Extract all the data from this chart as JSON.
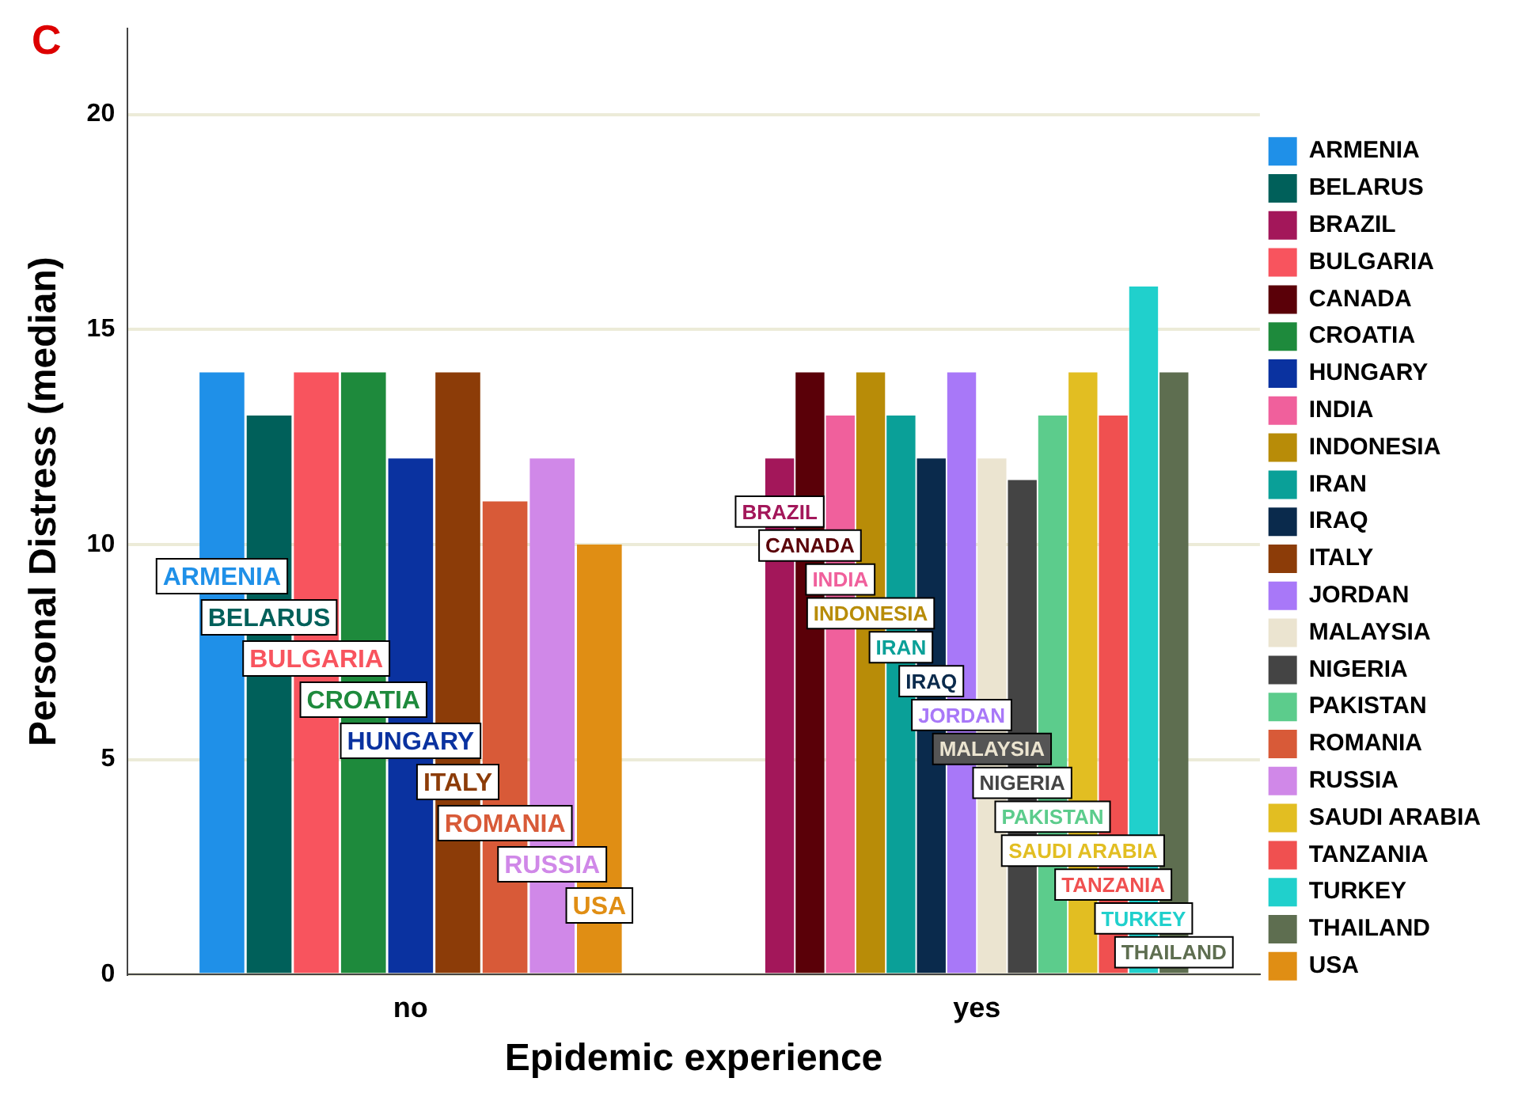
{
  "chart_data": {
    "type": "bar",
    "title": "C",
    "xlabel": "Epidemic experience",
    "ylabel": "Personal Distress (median)",
    "categories": [
      "no",
      "yes"
    ],
    "series": [
      {
        "name": "ARMENIA",
        "color": "#1f90e8",
        "values": [
          14,
          null
        ]
      },
      {
        "name": "BELARUS",
        "color": "#00605a",
        "values": [
          13,
          null
        ]
      },
      {
        "name": "BRAZIL",
        "color": "#a3175a",
        "values": [
          null,
          12
        ]
      },
      {
        "name": "BULGARIA",
        "color": "#f8545e",
        "values": [
          14,
          null
        ]
      },
      {
        "name": "CANADA",
        "color": "#5a0008",
        "values": [
          null,
          14
        ]
      },
      {
        "name": "CROATIA",
        "color": "#1e8a3c",
        "values": [
          14,
          null
        ]
      },
      {
        "name": "HUNGARY",
        "color": "#0a32a0",
        "values": [
          12,
          null
        ]
      },
      {
        "name": "INDIA",
        "color": "#f0609c",
        "values": [
          null,
          13
        ]
      },
      {
        "name": "INDONESIA",
        "color": "#b88c08",
        "values": [
          null,
          14
        ]
      },
      {
        "name": "IRAN",
        "color": "#0aa098",
        "values": [
          null,
          13
        ]
      },
      {
        "name": "IRAQ",
        "color": "#0a2a4c",
        "values": [
          null,
          12
        ]
      },
      {
        "name": "ITALY",
        "color": "#8c3c08",
        "values": [
          14,
          null
        ]
      },
      {
        "name": "JORDAN",
        "color": "#a878f8",
        "values": [
          null,
          14
        ]
      },
      {
        "name": "MALAYSIA",
        "color": "#ebe4d0",
        "values": [
          null,
          12
        ]
      },
      {
        "name": "NIGERIA",
        "color": "#444444",
        "values": [
          null,
          11.5
        ]
      },
      {
        "name": "PAKISTAN",
        "color": "#5ccc8c",
        "values": [
          null,
          13
        ]
      },
      {
        "name": "ROMANIA",
        "color": "#d85a38",
        "values": [
          11,
          null
        ]
      },
      {
        "name": "RUSSIA",
        "color": "#d088e8",
        "values": [
          12,
          null
        ]
      },
      {
        "name": "SAUDI ARABIA",
        "color": "#e2be22",
        "values": [
          null,
          14
        ]
      },
      {
        "name": "TANZANIA",
        "color": "#f05050",
        "values": [
          null,
          13
        ]
      },
      {
        "name": "TURKEY",
        "color": "#20d0cc",
        "values": [
          null,
          16
        ]
      },
      {
        "name": "THAILAND",
        "color": "#5e6e50",
        "values": [
          null,
          14
        ]
      },
      {
        "name": "USA",
        "color": "#e08e14",
        "values": [
          10,
          null
        ]
      }
    ],
    "ylim": [
      0,
      22
    ],
    "yticks": [
      0,
      5,
      10,
      15,
      20
    ],
    "grid": "y",
    "legend": "right"
  }
}
